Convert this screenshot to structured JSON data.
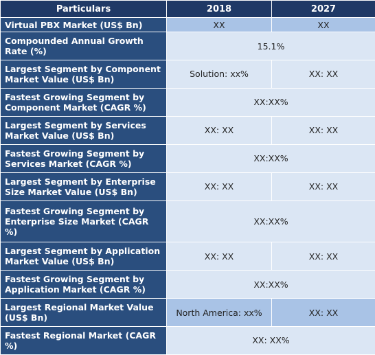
{
  "header": {
    "particulars": "Particulars",
    "col1": "2018",
    "col2": "2027"
  },
  "rows": [
    {
      "label": "Virtual PBX Market (US$ Bn)",
      "v2018": "XX",
      "v2027": "XX",
      "merged": false,
      "shade": "a"
    },
    {
      "label": "Compounded Annual Growth Rate (%)",
      "value": "15.1%",
      "merged": true,
      "shade": "b"
    },
    {
      "label": "Largest Segment by Component Market Value (US$ Bn)",
      "v2018": "Solution: xx%",
      "v2027": "XX: XX",
      "merged": false,
      "shade": "b"
    },
    {
      "label": "Fastest Growing Segment by Component Market (CAGR %)",
      "value": "XX:XX%",
      "merged": true,
      "shade": "b"
    },
    {
      "label": "Largest Segment by Services Market Value (US$ Bn)",
      "v2018": "XX: XX",
      "v2027": "XX: XX",
      "merged": false,
      "shade": "b"
    },
    {
      "label": "Fastest Growing Segment by Services Market (CAGR %)",
      "value": "XX:XX%",
      "merged": true,
      "shade": "b"
    },
    {
      "label": "Largest Segment by Enterprise Size Market Value (US$ Bn)",
      "v2018": "XX: XX",
      "v2027": "XX: XX",
      "merged": false,
      "shade": "b"
    },
    {
      "label": "Fastest Growing Segment by Enterprise Size Market (CAGR %)",
      "value": "XX:XX%",
      "merged": true,
      "shade": "b"
    },
    {
      "label": "Largest Segment by Application Market Value (US$ Bn)",
      "v2018": "XX: XX",
      "v2027": "XX: XX",
      "merged": false,
      "shade": "b"
    },
    {
      "label": "Fastest Growing Segment by Application Market (CAGR %)",
      "value": "XX:XX%",
      "merged": true,
      "shade": "b"
    },
    {
      "label": "Largest Regional Market Value (US$ Bn)",
      "v2018": "North America: xx%",
      "v2027": "XX: XX",
      "merged": false,
      "shade": "a"
    },
    {
      "label": "Fastest Regional Market (CAGR %)",
      "value": "XX: XX%",
      "merged": true,
      "shade": "b"
    }
  ],
  "colors": {
    "header_bg": "#1f3966",
    "label_bg": "#2a4e7e",
    "value_bg_dark": "#a9c3e6",
    "value_bg_light": "#dbe6f4"
  }
}
